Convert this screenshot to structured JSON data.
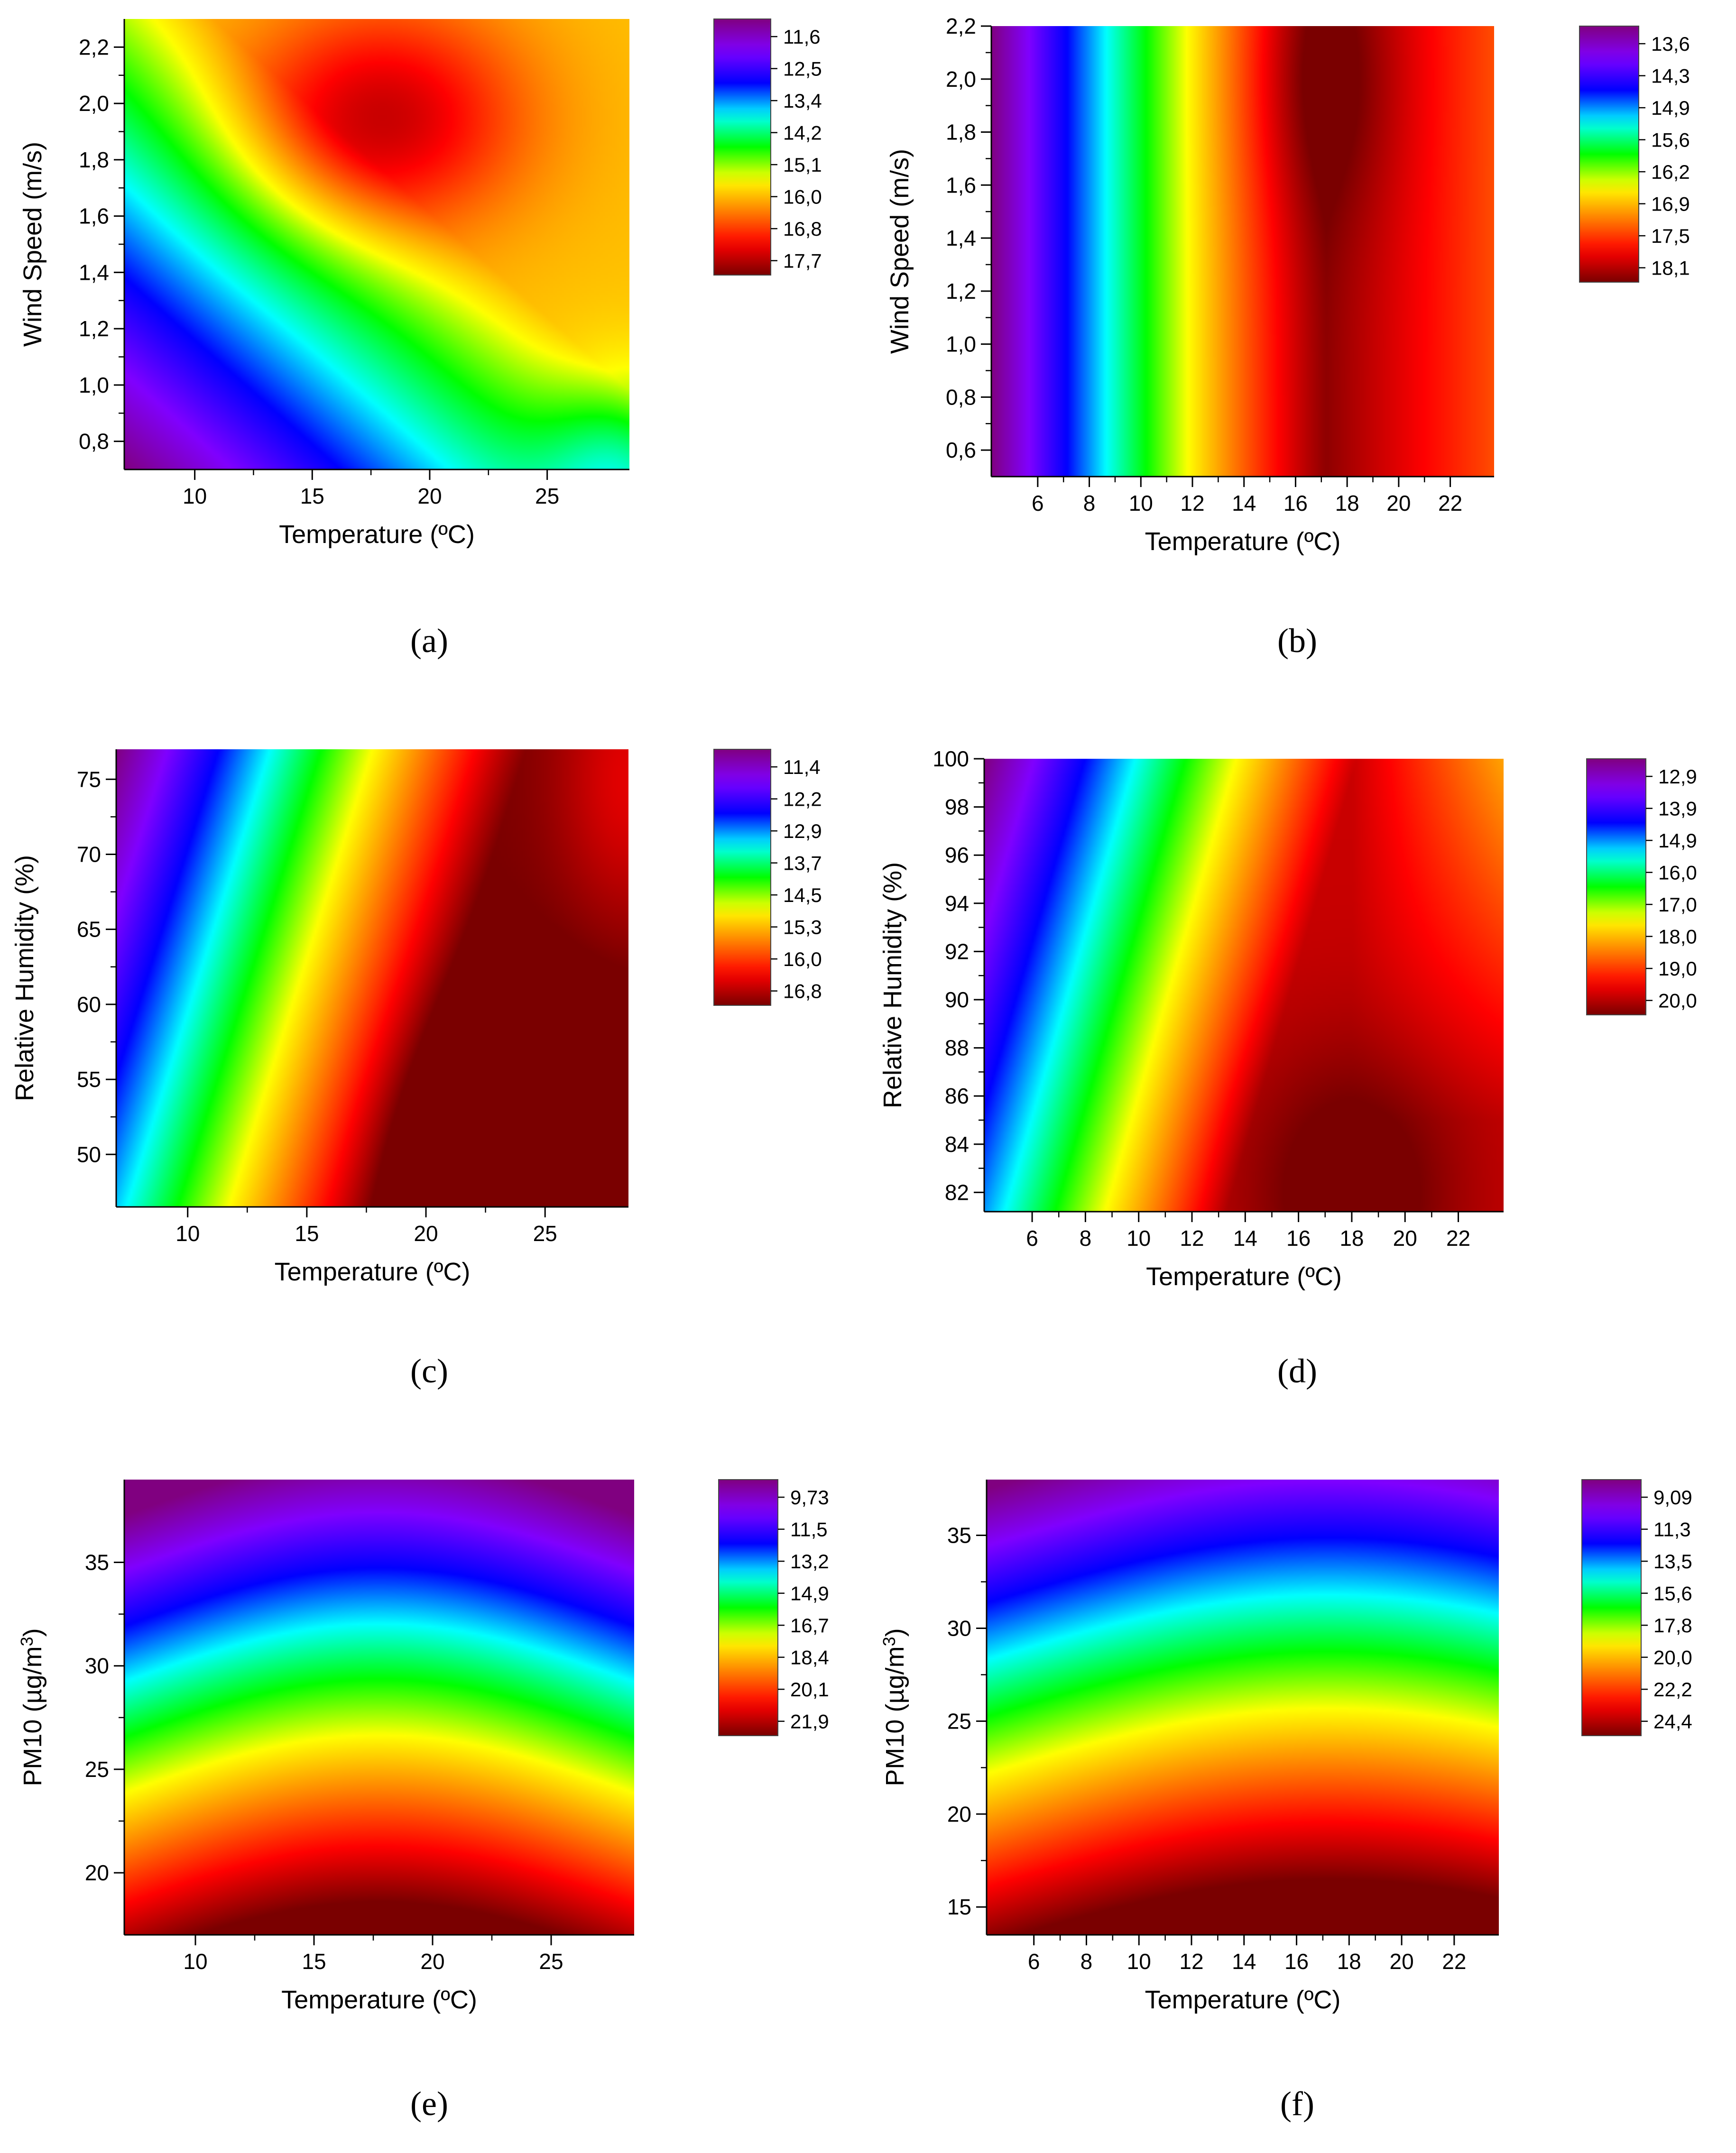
{
  "chart_data": [
    {
      "type": "heatmap",
      "id": "a",
      "caption": "(a)",
      "xlabel": "Temperature (ºC)",
      "ylabel": "Wind Speed (m/s)",
      "xlim": [
        7.0,
        28.5
      ],
      "ylim": [
        0.7,
        2.3
      ],
      "xticks": [
        10,
        15,
        20,
        25
      ],
      "xtick_labels": [
        "10",
        "15",
        "20",
        "25"
      ],
      "yticks": [
        0.8,
        1.0,
        1.2,
        1.4,
        1.6,
        1.8,
        2.0,
        2.2
      ],
      "ytick_labels": [
        "0,8",
        "1,0",
        "1,2",
        "1,4",
        "1,6",
        "1,8",
        "2,0",
        "2,2"
      ],
      "colorbar": [
        "11,6",
        "12,5",
        "13,4",
        "14,2",
        "15,1",
        "16,0",
        "16,8",
        "17,7"
      ],
      "cmin": 11.2,
      "cmax": 17.9,
      "field": "a"
    },
    {
      "type": "heatmap",
      "id": "b",
      "caption": "(b)",
      "xlabel": "Temperature (ºC)",
      "ylabel": "Wind Speed (m/s)",
      "xlim": [
        4.2,
        23.7
      ],
      "ylim": [
        0.5,
        2.2
      ],
      "xticks": [
        6,
        8,
        10,
        12,
        14,
        16,
        18,
        20,
        22
      ],
      "xtick_labels": [
        "6",
        "8",
        "10",
        "12",
        "14",
        "16",
        "18",
        "20",
        "22"
      ],
      "yticks": [
        0.6,
        0.8,
        1.0,
        1.2,
        1.4,
        1.6,
        1.8,
        2.0,
        2.2
      ],
      "ytick_labels": [
        "0,6",
        "0,8",
        "1,0",
        "1,2",
        "1,4",
        "1,6",
        "1,8",
        "2,0",
        "2,2"
      ],
      "colorbar": [
        "13,6",
        "14,3",
        "14,9",
        "15,6",
        "16,2",
        "16,9",
        "17,5",
        "18,1"
      ],
      "cmin": 13.3,
      "cmax": 18.3,
      "field": "b"
    },
    {
      "type": "heatmap",
      "id": "c",
      "caption": "(c)",
      "xlabel": "Temperature (ºC)",
      "ylabel": "Relative Humidity (%)",
      "xlim": [
        7.0,
        28.5
      ],
      "ylim": [
        46.5,
        77.0
      ],
      "xticks": [
        10,
        15,
        20,
        25
      ],
      "xtick_labels": [
        "10",
        "15",
        "20",
        "25"
      ],
      "yticks": [
        50,
        55,
        60,
        65,
        70,
        75
      ],
      "ytick_labels": [
        "50",
        "55",
        "60",
        "65",
        "70",
        "75"
      ],
      "colorbar": [
        "11,4",
        "12,2",
        "12,9",
        "13,7",
        "14,5",
        "15,3",
        "16,0",
        "16,8"
      ],
      "cmin": 11.0,
      "cmax": 17.1,
      "field": "c"
    },
    {
      "type": "heatmap",
      "id": "d",
      "caption": "(d)",
      "xlabel": "Temperature (ºC)",
      "ylabel": "Relative Humidity (%)",
      "xlim": [
        4.2,
        23.7
      ],
      "ylim": [
        81.2,
        100.0
      ],
      "xticks": [
        6,
        8,
        10,
        12,
        14,
        16,
        18,
        20,
        22
      ],
      "xtick_labels": [
        "6",
        "8",
        "10",
        "12",
        "14",
        "16",
        "18",
        "20",
        "22"
      ],
      "yticks": [
        82,
        84,
        86,
        88,
        90,
        92,
        94,
        96,
        98,
        100
      ],
      "ytick_labels": [
        "82",
        "84",
        "86",
        "88",
        "90",
        "92",
        "94",
        "96",
        "98",
        "100"
      ],
      "colorbar": [
        "12,9",
        "13,9",
        "14,9",
        "16,0",
        "17,0",
        "18,0",
        "19,0",
        "20,0"
      ],
      "cmin": 12.4,
      "cmax": 20.5,
      "field": "d"
    },
    {
      "type": "heatmap",
      "id": "e",
      "caption": "(e)",
      "xlabel": "Temperature (ºC)",
      "ylabel": "PM10 (µg/m3)",
      "xlim": [
        7.0,
        28.5
      ],
      "ylim": [
        17.0,
        39.0
      ],
      "xticks": [
        10,
        15,
        20,
        25
      ],
      "xtick_labels": [
        "10",
        "15",
        "20",
        "25"
      ],
      "yticks": [
        20,
        25,
        30,
        35
      ],
      "ytick_labels": [
        "20",
        "25",
        "30",
        "35"
      ],
      "colorbar": [
        "9,73",
        "11,5",
        "13,2",
        "14,9",
        "16,7",
        "18,4",
        "20,1",
        "21,9"
      ],
      "cmin": 8.9,
      "cmax": 22.7,
      "field": "e"
    },
    {
      "type": "heatmap",
      "id": "f",
      "caption": "(f)",
      "xlabel": "Temperature (ºC)",
      "ylabel": "PM10 (µg/m3)",
      "xlim": [
        4.2,
        23.7
      ],
      "ylim": [
        13.5,
        38.0
      ],
      "xticks": [
        6,
        8,
        10,
        12,
        14,
        16,
        18,
        20,
        22
      ],
      "xtick_labels": [
        "6",
        "8",
        "10",
        "12",
        "14",
        "16",
        "18",
        "20",
        "22"
      ],
      "yticks": [
        15,
        20,
        25,
        30,
        35
      ],
      "ytick_labels": [
        "15",
        "20",
        "25",
        "30",
        "35"
      ],
      "colorbar": [
        "9,09",
        "11,3",
        "13,5",
        "15,6",
        "17,8",
        "20,0",
        "22,2",
        "24,4"
      ],
      "cmin": 8.0,
      "cmax": 25.5,
      "field": "f"
    }
  ],
  "colors": {
    "rainbow": [
      "#7a0000",
      "#ff0000",
      "#ff8000",
      "#ffff00",
      "#00ff00",
      "#00ffff",
      "#0000ff",
      "#8000ff",
      "#800080"
    ]
  }
}
